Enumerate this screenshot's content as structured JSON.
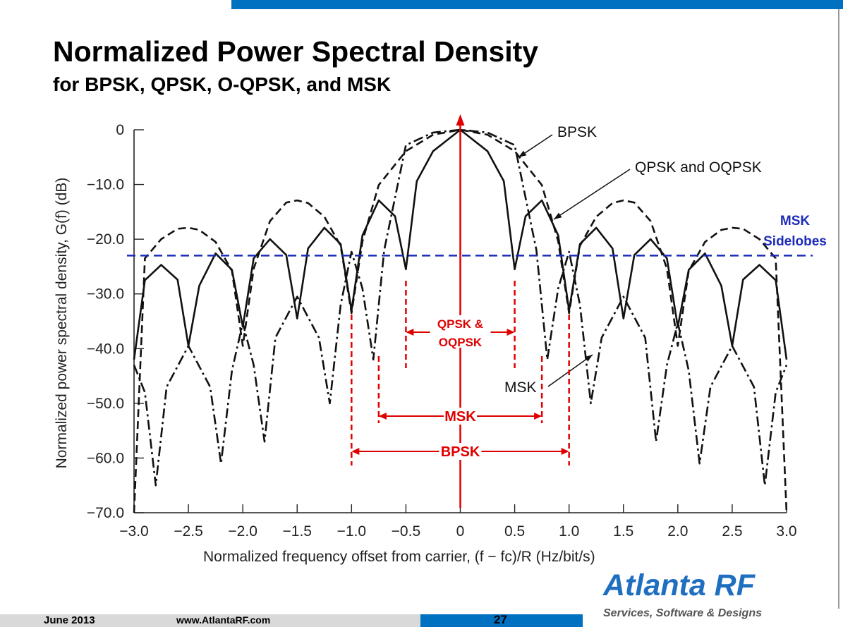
{
  "slide": {
    "title": "Normalized Power Spectral Density",
    "subtitle": "for BPSK, QPSK, O-QPSK, and MSK",
    "brand": "Atlanta RF",
    "tagline": "Services, Software & Designs",
    "footer_date": "June 2013",
    "footer_url": "www.AtlantaRF.com",
    "page_number": "27",
    "accent_color": "#0070c0",
    "brand_color": "#1f6fc0",
    "annotation_color": "#e00000",
    "threshold_color": "#1d2cb8"
  },
  "chart_data": {
    "type": "line",
    "xlabel": "Normalized frequency offset from carrier, (f − fc)/R (Hz/bit/s)",
    "ylabel": "Normalized power spectral density, G(f) (dB)",
    "xlim": [
      -3.0,
      3.0
    ],
    "ylim": [
      -70,
      0
    ],
    "xticks": [
      "−3.0",
      "−2.5",
      "−2.0",
      "−1.5",
      "−1.0",
      "−0.5",
      "0",
      "0.5",
      "1.0",
      "1.5",
      "2.0",
      "2.5",
      "3.0"
    ],
    "yticks": [
      "0",
      "−10.0",
      "−20.0",
      "−30.0",
      "−40.0",
      "−50.0",
      "−60.0",
      "−70.0"
    ],
    "grid": false,
    "series": [
      {
        "name": "BPSK",
        "style": "dashed",
        "x": [
          -3.0,
          -2.9,
          -2.75,
          -2.6,
          -2.5,
          -2.4,
          -2.25,
          -2.1,
          -2.0,
          -1.9,
          -1.75,
          -1.6,
          -1.5,
          -1.4,
          -1.25,
          -1.1,
          -1.0,
          -0.9,
          -0.75,
          -0.5,
          -0.25,
          0,
          0.25,
          0.5,
          0.75,
          0.9,
          1.0,
          1.1,
          1.25,
          1.4,
          1.5,
          1.6,
          1.75,
          1.9,
          2.0,
          2.1,
          2.25,
          2.4,
          2.5,
          2.6,
          2.75,
          2.9,
          3.0
        ],
        "y": [
          -70,
          -23.5,
          -20.0,
          -18.1,
          -17.9,
          -18.3,
          -20.5,
          -25.8,
          -39.5,
          -25.4,
          -16.7,
          -13.3,
          -12.9,
          -13.4,
          -15.9,
          -21.2,
          -33.5,
          -20.4,
          -10.1,
          -3.9,
          -0.9,
          0,
          -0.9,
          -3.9,
          -10.1,
          -20.4,
          -33.5,
          -21.2,
          -15.9,
          -13.4,
          -12.9,
          -13.3,
          -16.7,
          -25.4,
          -39.5,
          -25.8,
          -20.5,
          -18.3,
          -17.9,
          -18.1,
          -20.0,
          -23.5,
          -70
        ]
      },
      {
        "name": "QPSK and OQPSK",
        "style": "solid",
        "x": [
          -3.0,
          -2.9,
          -2.75,
          -2.6,
          -2.5,
          -2.4,
          -2.25,
          -2.1,
          -2.0,
          -1.9,
          -1.75,
          -1.6,
          -1.5,
          -1.4,
          -1.25,
          -1.1,
          -1.0,
          -0.9,
          -0.75,
          -0.6,
          -0.5,
          -0.4,
          -0.25,
          0,
          0.25,
          0.4,
          0.5,
          0.6,
          0.75,
          0.9,
          1.0,
          1.1,
          1.25,
          1.4,
          1.5,
          1.6,
          1.75,
          1.9,
          2.0,
          2.1,
          2.25,
          2.4,
          2.5,
          2.6,
          2.75,
          2.9,
          3.0
        ],
        "y": [
          -42,
          -27.5,
          -24.7,
          -27.4,
          -39.5,
          -28.5,
          -22.6,
          -25.6,
          -36.0,
          -23.5,
          -20.0,
          -22.9,
          -34.5,
          -21.7,
          -17.9,
          -20.9,
          -33.0,
          -19.3,
          -12.9,
          -15.8,
          -25.5,
          -9.4,
          -3.9,
          0,
          -3.9,
          -9.4,
          -25.5,
          -15.8,
          -12.9,
          -19.3,
          -33.0,
          -20.9,
          -17.9,
          -21.7,
          -34.5,
          -22.9,
          -20.0,
          -23.5,
          -36.0,
          -25.6,
          -22.6,
          -28.5,
          -39.5,
          -27.4,
          -24.7,
          -27.5,
          -42
        ]
      },
      {
        "name": "MSK",
        "style": "dash-dot",
        "x": [
          -3.0,
          -2.9,
          -2.8,
          -2.7,
          -2.5,
          -2.3,
          -2.2,
          -2.1,
          -2.0,
          -1.9,
          -1.8,
          -1.7,
          -1.5,
          -1.3,
          -1.2,
          -1.1,
          -1.0,
          -0.9,
          -0.8,
          -0.7,
          -0.5,
          -0.25,
          0,
          0.25,
          0.5,
          0.7,
          0.8,
          0.9,
          1.0,
          1.1,
          1.2,
          1.3,
          1.5,
          1.7,
          1.8,
          1.9,
          2.0,
          2.1,
          2.2,
          2.3,
          2.5,
          2.7,
          2.8,
          2.9,
          3.0
        ],
        "y": [
          -43,
          -48,
          -65,
          -47,
          -39.5,
          -47,
          -61,
          -44,
          -35.3,
          -43,
          -57,
          -38,
          -30.5,
          -38,
          -50,
          -32,
          -22.3,
          -29,
          -42,
          -22,
          -2.8,
          -0.5,
          0,
          -0.5,
          -2.8,
          -22,
          -42,
          -29,
          -22.3,
          -32,
          -50,
          -38,
          -30.5,
          -38,
          -57,
          -43,
          -35.3,
          -44,
          -61,
          -47,
          -39.5,
          -47,
          -65,
          -48,
          -43
        ]
      }
    ],
    "threshold": {
      "label_line1": "MSK",
      "label_line2": "Sidelobes",
      "y": -23
    },
    "annotations": {
      "center_marker": {
        "x": 0
      },
      "curve_labels": [
        {
          "text": "BPSK",
          "series": "BPSK"
        },
        {
          "text": "QPSK and OQPSK",
          "series": "QPSK and OQPSK"
        },
        {
          "text": "MSK",
          "series": "MSK"
        }
      ],
      "bandwidth_markers": [
        {
          "label_line1": "QPSK &",
          "label_line2": "OQPSK",
          "x_from": -0.5,
          "x_to": 0.5
        },
        {
          "label_line1": "MSK",
          "label_line2": "",
          "x_from": -0.75,
          "x_to": 0.75
        },
        {
          "label_line1": "BPSK",
          "label_line2": "",
          "x_from": -1.0,
          "x_to": 1.0
        }
      ]
    }
  }
}
